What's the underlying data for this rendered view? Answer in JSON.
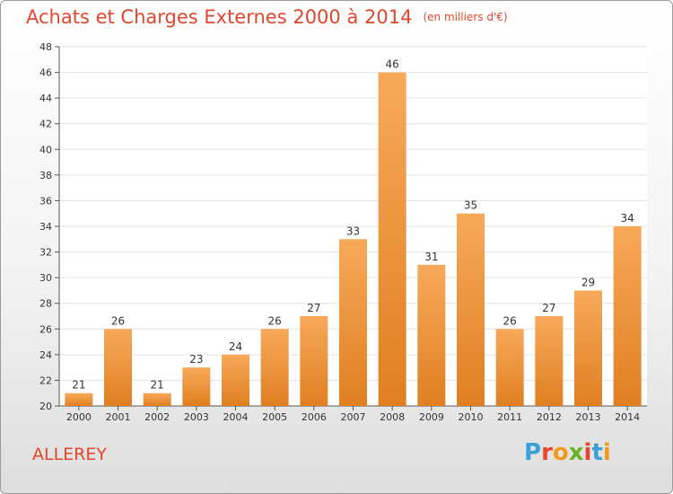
{
  "title": "Achats et Charges Externes 2000 à 2014",
  "subtitle": "(en milliers d'€)",
  "commune": "ALLEREY",
  "logo": [
    "P",
    "r",
    "o",
    "x",
    "i",
    "t",
    "i"
  ],
  "colors": {
    "title": "#e2462c",
    "bar_top": "#f7a95a",
    "bar_bottom": "#e07f22"
  },
  "chart_data": {
    "type": "bar",
    "title": "Achats et Charges Externes 2000 à 2014",
    "xlabel": "",
    "ylabel": "",
    "categories": [
      "2000",
      "2001",
      "2002",
      "2003",
      "2004",
      "2005",
      "2006",
      "2007",
      "2008",
      "2009",
      "2010",
      "2011",
      "2012",
      "2013",
      "2014"
    ],
    "values": [
      21,
      26,
      21,
      23,
      24,
      26,
      27,
      33,
      46,
      31,
      35,
      26,
      27,
      29,
      34
    ],
    "ylim": [
      20,
      48
    ],
    "yticks": [
      20,
      22,
      24,
      26,
      28,
      30,
      32,
      34,
      36,
      38,
      40,
      42,
      44,
      46,
      48
    ],
    "grid": true,
    "legend": "none"
  }
}
